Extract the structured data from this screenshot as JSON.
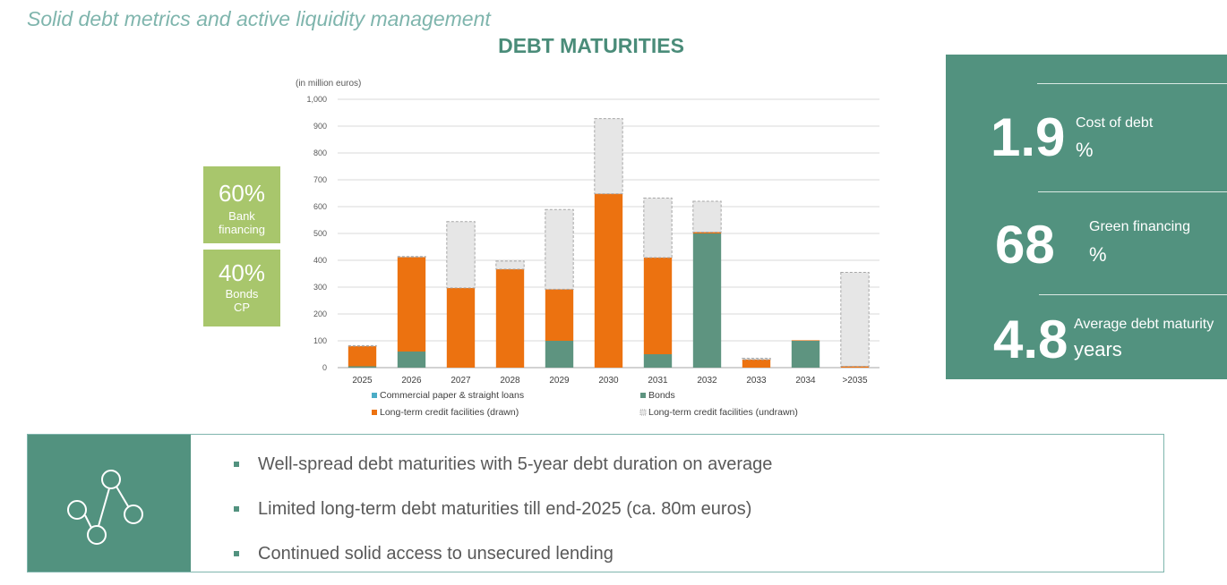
{
  "header": {
    "subtitle": "Solid debt metrics and active liquidity management"
  },
  "chart_data": {
    "type": "bar",
    "title": "DEBT MATURITIES",
    "unit_label": "(in million euros)",
    "ylim": [
      0,
      1000
    ],
    "y_ticks": [
      "0",
      "100",
      "200",
      "300",
      "400",
      "500",
      "600",
      "700",
      "800",
      "900",
      "1,000"
    ],
    "grid": true,
    "stacked": true,
    "legend_position": "bottom",
    "categories": [
      "2025",
      "2026",
      "2027",
      "2028",
      "2029",
      "2030",
      "2031",
      "2032",
      "2033",
      "2034",
      ">2035"
    ],
    "series": [
      {
        "name": "Commercial paper & straight loans",
        "color": "#4bacc6",
        "values": [
          0,
          0,
          0,
          0,
          0,
          0,
          0,
          0,
          0,
          0,
          0
        ]
      },
      {
        "name": "Bonds",
        "color": "#5e9480",
        "values": [
          5,
          60,
          0,
          0,
          100,
          0,
          50,
          500,
          0,
          100,
          0
        ]
      },
      {
        "name": "Long-term credit facilities (drawn)",
        "color": "#ec7210",
        "values": [
          75,
          352,
          297,
          367,
          192,
          648,
          360,
          5,
          30,
          2,
          5
        ]
      },
      {
        "name": "Long-term credit facilities (undrawn)",
        "color": "#e6e6e6",
        "values": [
          2,
          2,
          247,
          30,
          297,
          280,
          222,
          115,
          5,
          0,
          350
        ]
      }
    ]
  },
  "shares": [
    {
      "pct": "60%",
      "label1": "Bank",
      "label2": "financing"
    },
    {
      "pct": "40%",
      "label1": "Bonds",
      "label2": "CP"
    }
  ],
  "kpis": [
    {
      "value": "1.9",
      "label": "Cost of debt",
      "unit": "%"
    },
    {
      "value": "68",
      "label": "Green financing",
      "unit": "%"
    },
    {
      "value": "4.8",
      "label": "Average debt maturity",
      "unit": "years"
    }
  ],
  "bullets": [
    "Well-spread debt maturities with 5-year debt duration on average",
    "Limited long-term debt maturities till end-2025 (ca. 80m euros)",
    "Continued solid access to unsecured lending"
  ],
  "colors": {
    "accent": "#52927f",
    "title": "#4a8c79",
    "subtitle": "#7fb5ad",
    "share_box": "#a8c66c"
  },
  "icons": {
    "network": "network-nodes-icon"
  }
}
